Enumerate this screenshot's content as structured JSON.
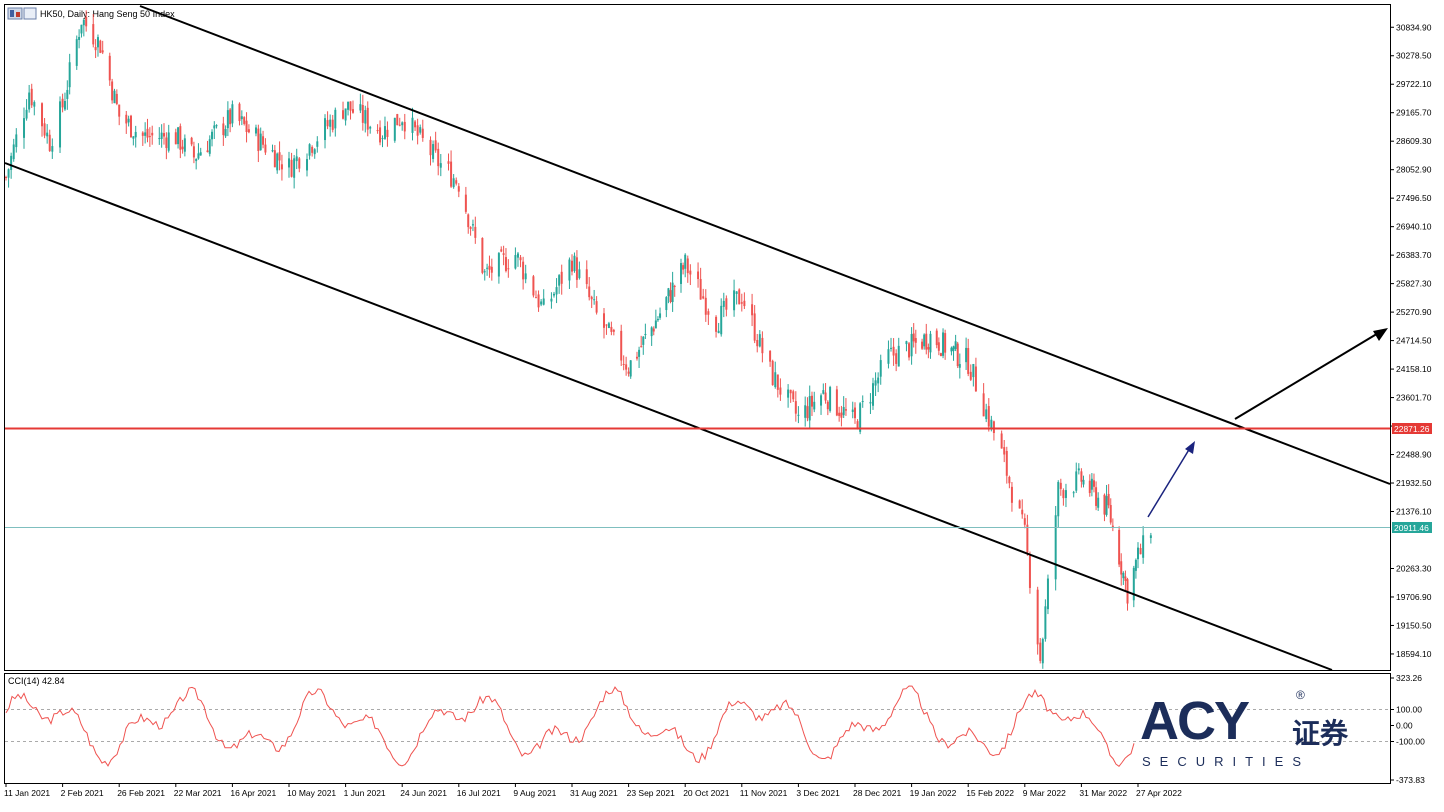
{
  "window": {
    "title": "HK50, Daily:  Hang Seng 50 Index"
  },
  "chart_data": [
    {
      "type": "candlestick",
      "symbol": "HK50",
      "timeframe": "Daily",
      "instrument": "Hang Seng 50 Index",
      "ylim": [
        18300,
        31250
      ],
      "y_ticks": [
        "30834.90",
        "30278.50",
        "29722.10",
        "29165.70",
        "28609.30",
        "28052.90",
        "27496.50",
        "26940.10",
        "26383.70",
        "25827.30",
        "25270.90",
        "24714.50",
        "24158.10",
        "23601.70",
        "23045.30",
        "22488.90",
        "21932.50",
        "21376.10",
        "20263.30",
        "19706.90",
        "19150.50",
        "18594.10"
      ],
      "x_ticks": [
        "11 Jan 2021",
        "2 Feb 2021",
        "26 Feb 2021",
        "22 Mar 2021",
        "16 Apr 2021",
        "10 May 2021",
        "1 Jun 2021",
        "24 Jun 2021",
        "16 Jul 2021",
        "9 Aug 2021",
        "31 Aug 2021",
        "23 Sep 2021",
        "20 Oct 2021",
        "11 Nov 2021",
        "3 Dec 2021",
        "28 Dec 2021",
        "19 Jan 2022",
        "15 Feb 2022",
        "9 Mar 2022",
        "31 Mar 2022",
        "27 Apr 2022"
      ],
      "price_path": [
        [
          "11 Jan 2021",
          27900
        ],
        [
          "20 Jan 2021",
          29600
        ],
        [
          "28 Jan 2021",
          28600
        ],
        [
          "2 Feb 2021",
          29300
        ],
        [
          "10 Feb 2021",
          31000
        ],
        [
          "18 Feb 2021",
          30500
        ],
        [
          "26 Feb 2021",
          29100
        ],
        [
          "8 Mar 2021",
          28700
        ],
        [
          "22 Mar 2021",
          28700
        ],
        [
          "30 Mar 2021",
          28300
        ],
        [
          "16 Apr 2021",
          29100
        ],
        [
          "10 May 2021",
          28100
        ],
        [
          "1 Jun 2021",
          29300
        ],
        [
          "16 Jun 2021",
          28800
        ],
        [
          "24 Jun 2021",
          29100
        ],
        [
          "8 Jul 2021",
          28200
        ],
        [
          "16 Jul 2021",
          27800
        ],
        [
          "27 Jul 2021",
          26000
        ],
        [
          "9 Aug 2021",
          26400
        ],
        [
          "20 Aug 2021",
          25300
        ],
        [
          "31 Aug 2021",
          26300
        ],
        [
          "10 Sep 2021",
          25200
        ],
        [
          "23 Sep 2021",
          24200
        ],
        [
          "6 Oct 2021",
          25100
        ],
        [
          "20 Oct 2021",
          26200
        ],
        [
          "1 Nov 2021",
          25100
        ],
        [
          "11 Nov 2021",
          25600
        ],
        [
          "22 Nov 2021",
          24100
        ],
        [
          "3 Dec 2021",
          23200
        ],
        [
          "14 Dec 2021",
          23700
        ],
        [
          "28 Dec 2021",
          23100
        ],
        [
          "10 Jan 2022",
          24400
        ],
        [
          "19 Jan 2022",
          24600
        ],
        [
          "28 Jan 2022",
          24800
        ],
        [
          "15 Feb 2022",
          24300
        ],
        [
          "28 Feb 2022",
          22500
        ],
        [
          "9 Mar 2022",
          20900
        ],
        [
          "15 Mar 2022",
          18500
        ],
        [
          "22 Mar 2022",
          21800
        ],
        [
          "31 Mar 2022",
          22000
        ],
        [
          "13 Apr 2022",
          21400
        ],
        [
          "22 Apr 2022",
          19800
        ],
        [
          "27 Apr 2022",
          20500
        ],
        [
          "2 May 2022",
          20911.46
        ]
      ],
      "current_price": "20911.46",
      "resistance_level": "22871.26",
      "colors": {
        "bull": "#26a69a",
        "bear": "#ef5350",
        "resistance": "#e53935",
        "current": "#26a69a",
        "channel": "#000000",
        "projection": "#1a237e"
      }
    },
    {
      "type": "line",
      "indicator": "CCI",
      "label": "CCI(14) 42.84",
      "ylim": [
        -373.83,
        323.26
      ],
      "y_ticks": [
        "323.26",
        "100.00",
        "0.00",
        "-100.00",
        "-373.83"
      ],
      "levels": [
        100,
        -100
      ],
      "color": "#ef5350"
    }
  ],
  "watermark": {
    "logo": "ACY",
    "registered": "®",
    "chinese": "证券",
    "subtitle": "SECURITIES"
  }
}
